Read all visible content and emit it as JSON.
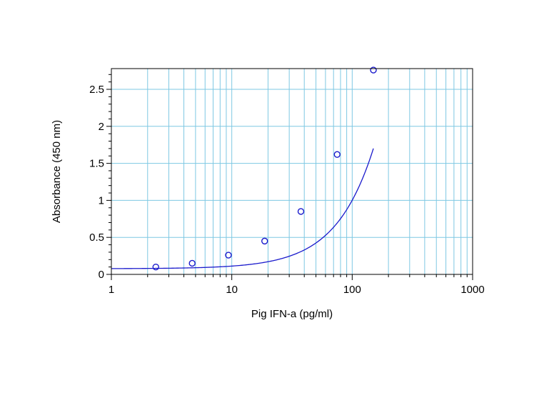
{
  "chart_data": {
    "type": "scatter",
    "title": "",
    "xlabel": "Pig IFN-a (pg/ml)",
    "ylabel": "Absorbance (450 nm)",
    "x_scale": "log",
    "xlim": [
      1,
      1000
    ],
    "ylim": [
      0,
      2.78
    ],
    "x_ticks": [
      1,
      10,
      100,
      1000
    ],
    "x_tick_labels": [
      "1",
      "10",
      "100",
      "1000"
    ],
    "y_ticks": [
      0,
      0.5,
      1,
      1.5,
      2,
      2.5
    ],
    "y_tick_labels": [
      "0",
      "0.5",
      "1",
      "1.5",
      "2",
      "2.5"
    ],
    "grid": true,
    "grid_color": "#7ec8e3",
    "series_color": "#1a1acc",
    "series": [
      {
        "x": [
          2.34,
          4.69,
          9.38,
          18.75,
          37.5,
          75,
          150
        ],
        "y": [
          0.1,
          0.15,
          0.26,
          0.45,
          0.85,
          1.62,
          2.76
        ],
        "marker": "circle",
        "fit": "4pl"
      }
    ],
    "fit_params": {
      "a": 0.077,
      "b": 1.43,
      "c": 1490,
      "d": 45
    }
  }
}
